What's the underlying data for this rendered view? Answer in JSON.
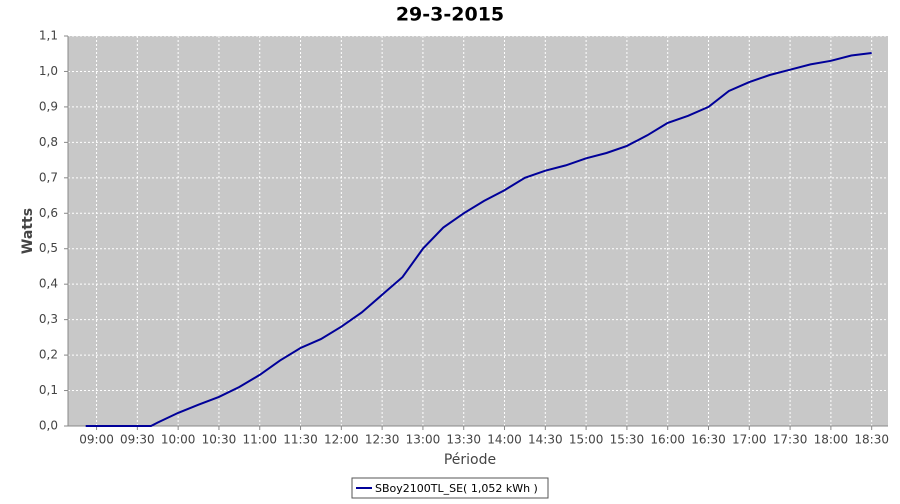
{
  "chart_data": {
    "type": "line",
    "title": "29-3-2015",
    "x_label": "Période",
    "y_label": "Watts",
    "x": [
      "08:52",
      "09:40",
      "09:45",
      "10:00",
      "10:15",
      "10:30",
      "10:45",
      "11:00",
      "11:15",
      "11:30",
      "11:45",
      "12:00",
      "12:15",
      "12:30",
      "12:45",
      "13:00",
      "13:15",
      "13:30",
      "13:45",
      "14:00",
      "14:15",
      "14:30",
      "14:45",
      "15:00",
      "15:15",
      "15:30",
      "15:45",
      "16:00",
      "16:15",
      "16:30",
      "16:45",
      "17:00",
      "17:15",
      "17:30",
      "17:45",
      "18:00",
      "18:15",
      "18:30"
    ],
    "series": [
      {
        "name": "SBoy2100TL_SE( 1,052 kWh )",
        "color": "#000099",
        "values": [
          0.0,
          0.0,
          0.01,
          0.037,
          0.06,
          0.082,
          0.11,
          0.144,
          0.185,
          0.22,
          0.245,
          0.28,
          0.32,
          0.37,
          0.42,
          0.5,
          0.56,
          0.6,
          0.635,
          0.665,
          0.7,
          0.72,
          0.735,
          0.755,
          0.77,
          0.79,
          0.82,
          0.855,
          0.875,
          0.9,
          0.945,
          0.97,
          0.99,
          1.005,
          1.02,
          1.03,
          1.045,
          1.052
        ]
      }
    ],
    "xlim": [
      "08:39",
      "18:42"
    ],
    "xticks": [
      "09:00",
      "09:30",
      "10:00",
      "10:30",
      "11:00",
      "11:30",
      "12:00",
      "12:30",
      "13:00",
      "13:30",
      "14:00",
      "14:30",
      "15:00",
      "15:30",
      "16:00",
      "16:30",
      "17:00",
      "17:30",
      "18:00",
      "18:30"
    ],
    "ylim": [
      0,
      1.1
    ],
    "yticks": [
      {
        "value": 0,
        "label": "0,0"
      },
      {
        "value": 0.1,
        "label": "0,1"
      },
      {
        "value": 0.2,
        "label": "0,2"
      },
      {
        "value": 0.3,
        "label": "0,3"
      },
      {
        "value": 0.4,
        "label": "0,4"
      },
      {
        "value": 0.5,
        "label": "0,5"
      },
      {
        "value": 0.6,
        "label": "0,6"
      },
      {
        "value": 0.7,
        "label": "0,7"
      },
      {
        "value": 0.8,
        "label": "0,8"
      },
      {
        "value": 0.9,
        "label": "0,9"
      },
      {
        "value": 1.0,
        "label": "1,0"
      },
      {
        "value": 1.1,
        "label": "1,1"
      }
    ],
    "grid": true
  }
}
